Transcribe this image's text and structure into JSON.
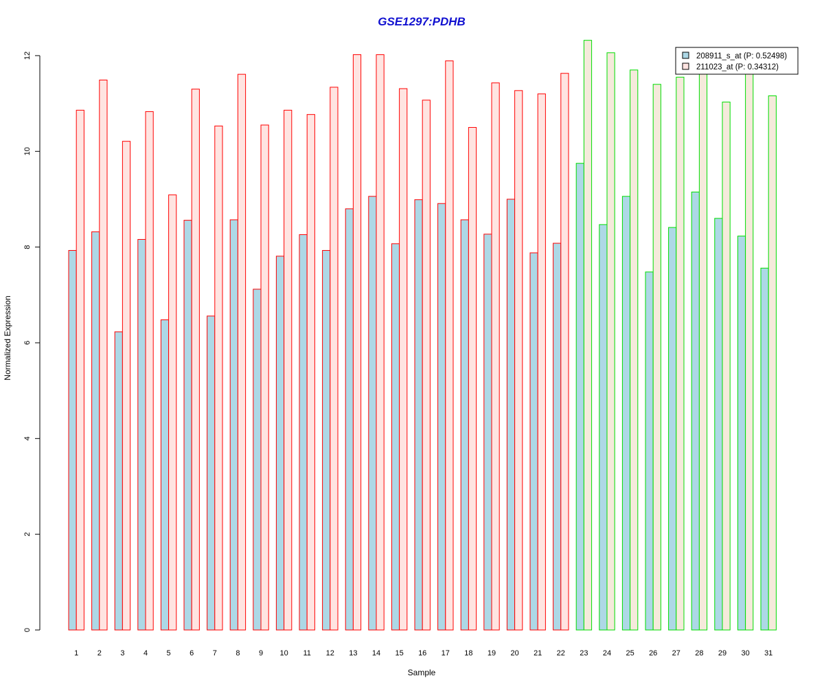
{
  "chart_data": {
    "type": "bar",
    "title": "GSE1297:PDHB",
    "xlabel": "Sample",
    "ylabel": "Normalized Expression",
    "categories": [
      "1",
      "2",
      "3",
      "4",
      "5",
      "6",
      "7",
      "8",
      "9",
      "10",
      "11",
      "12",
      "13",
      "14",
      "15",
      "16",
      "17",
      "18",
      "19",
      "20",
      "21",
      "22",
      "23",
      "24",
      "25",
      "26",
      "27",
      "28",
      "29",
      "30",
      "31"
    ],
    "yticks": [
      "0",
      "2",
      "4",
      "6",
      "8",
      "10",
      "12"
    ],
    "ylim": [
      0,
      12.4
    ],
    "grid": false,
    "legend_position": "top-right",
    "series": [
      {
        "name": "208911_s_at (P: 0.52498)",
        "fill": "#add8e6",
        "values": [
          7.93,
          8.32,
          6.23,
          8.16,
          6.48,
          8.56,
          6.56,
          8.57,
          7.12,
          7.81,
          8.26,
          7.93,
          8.8,
          9.06,
          8.07,
          8.99,
          8.91,
          8.57,
          8.27,
          9.0,
          7.88,
          8.08,
          9.75,
          8.47,
          9.06,
          7.48,
          8.41,
          9.15,
          8.6,
          8.23,
          7.56
        ]
      },
      {
        "name": "211023_at (P: 0.34312)",
        "fill": "#ffe4e1",
        "values": [
          10.86,
          11.49,
          10.21,
          10.83,
          9.09,
          11.3,
          10.53,
          11.61,
          10.55,
          10.86,
          10.77,
          11.34,
          12.02,
          12.02,
          11.31,
          11.07,
          11.89,
          10.5,
          11.43,
          11.27,
          11.2,
          11.63,
          12.32,
          12.06,
          11.7,
          11.4,
          11.55,
          11.65,
          11.03,
          11.65,
          11.16
        ]
      }
    ],
    "group_border_colors": [
      "#ff0000",
      "#00dd00"
    ],
    "group_split_after": 22,
    "second_series_group2_fill": "#f5eadb"
  },
  "colors": {
    "title": "#1010d0",
    "axis": "#000000"
  }
}
